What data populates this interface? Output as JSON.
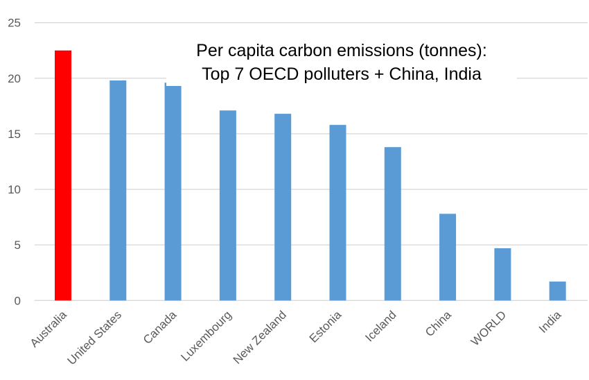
{
  "chart_data": {
    "type": "bar",
    "title": "Per capita carbon emissions (tonnes):",
    "subtitle": "Top 7 OECD polluters + China, India",
    "categories": [
      "Australia",
      "United States",
      "Canada",
      "Luxembourg",
      "New Zealand",
      "Estonia",
      "Iceland",
      "China",
      "WORLD",
      "India"
    ],
    "values": [
      22.5,
      19.8,
      19.6,
      17.1,
      16.8,
      15.8,
      13.8,
      7.8,
      4.7,
      1.7
    ],
    "highlight_index": 0,
    "colors": {
      "highlight": "#ff0000",
      "bar": "#5b9bd5",
      "grid": "#d9d9d9"
    },
    "yticks": [
      0,
      5,
      10,
      15,
      20,
      25
    ],
    "ylim": [
      0,
      25
    ],
    "xlabel": "",
    "ylabel": "",
    "grid": true
  }
}
